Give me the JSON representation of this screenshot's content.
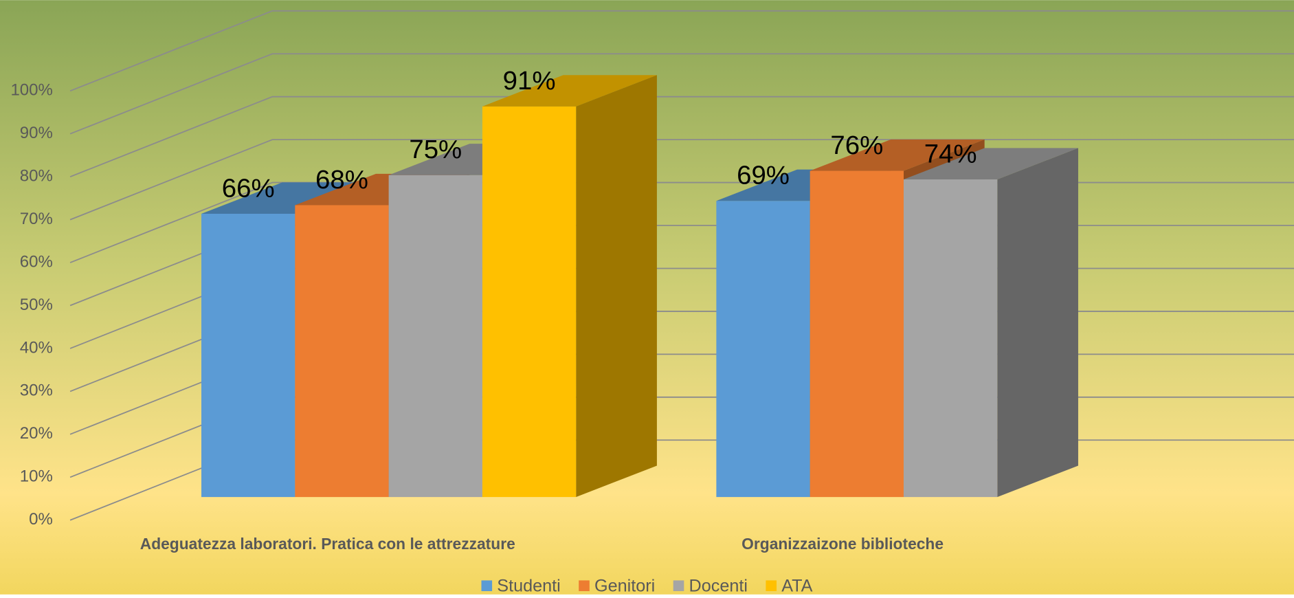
{
  "chart_data": {
    "type": "bar3d",
    "categories": [
      "Adeguatezza  laboratori. Pratica con le attrezzature",
      "Organizzaizone biblioteche"
    ],
    "series": [
      {
        "name": "Studenti",
        "color": "#5b9bd5",
        "values": [
          66,
          69
        ],
        "value_labels": [
          "66%",
          "69%"
        ]
      },
      {
        "name": "Genitori",
        "color": "#ed7d31",
        "values": [
          68,
          76
        ],
        "value_labels": [
          "68%",
          "76%"
        ]
      },
      {
        "name": "Docenti",
        "color": "#a5a5a5",
        "values": [
          75,
          74
        ],
        "value_labels": [
          "75%",
          "74%"
        ]
      },
      {
        "name": "ATA",
        "color": "#ffc000",
        "values": [
          91,
          null
        ],
        "value_labels": [
          "91%",
          null
        ]
      }
    ],
    "ylim": [
      0,
      100
    ],
    "yticks": [
      {
        "value": 0,
        "label": "0%"
      },
      {
        "value": 10,
        "label": "10%"
      },
      {
        "value": 20,
        "label": "20%"
      },
      {
        "value": 30,
        "label": "30%"
      },
      {
        "value": 40,
        "label": "40%"
      },
      {
        "value": 50,
        "label": "50%"
      },
      {
        "value": 60,
        "label": "60%"
      },
      {
        "value": 70,
        "label": "70%"
      },
      {
        "value": 80,
        "label": "80%"
      },
      {
        "value": 90,
        "label": "90%"
      },
      {
        "value": 100,
        "label": "100%"
      }
    ],
    "grid": true,
    "legend": "bottom"
  }
}
